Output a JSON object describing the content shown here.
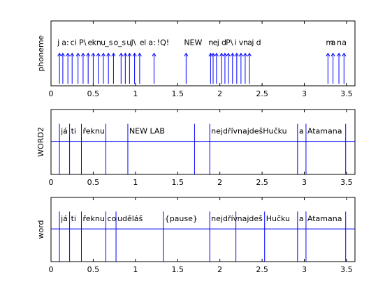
{
  "chart_data": [
    {
      "type": "event-plot",
      "ylabel": "phoneme",
      "xlim": [
        0,
        3.6
      ],
      "xticks": [
        "0",
        "0.5",
        "1",
        "1.5",
        "2",
        "2.5",
        "3",
        "3.5"
      ],
      "style": "stem",
      "marks": [
        {
          "x": 0.1,
          "label": "j"
        },
        {
          "x": 0.14,
          "label": "a:"
        },
        {
          "x": 0.2,
          "label": "c"
        },
        {
          "x": 0.25,
          "label": "i"
        },
        {
          "x": 0.32,
          "label": "P\\"
        },
        {
          "x": 0.38,
          "label": "e"
        },
        {
          "x": 0.44,
          "label": "k"
        },
        {
          "x": 0.5,
          "label": "n"
        },
        {
          "x": 0.56,
          "label": "u"
        },
        {
          "x": 0.62,
          "label": "_s"
        },
        {
          "x": 0.68,
          "label": "o"
        },
        {
          "x": 0.74,
          "label": "_s"
        },
        {
          "x": 0.83,
          "label": "u"
        },
        {
          "x": 0.88,
          "label": "J\\"
        },
        {
          "x": 0.93,
          "label": "e"
        },
        {
          "x": 0.99,
          "label": "l"
        },
        {
          "x": 1.05,
          "label": "a:"
        },
        {
          "x": 1.22,
          "label": "!Q!"
        },
        {
          "x": 1.6,
          "label": "NEW"
        },
        {
          "x": 1.89,
          "label": "n"
        },
        {
          "x": 1.92,
          "label": "e"
        },
        {
          "x": 1.96,
          "label": "j"
        },
        {
          "x": 2.02,
          "label": "d"
        },
        {
          "x": 2.06,
          "label": "P\\"
        },
        {
          "x": 2.1,
          "label": "i"
        },
        {
          "x": 2.15,
          "label": "v"
        },
        {
          "x": 2.2,
          "label": "n"
        },
        {
          "x": 2.25,
          "label": "a"
        },
        {
          "x": 2.3,
          "label": "j"
        },
        {
          "x": 2.35,
          "label": "d"
        },
        {
          "x": 3.28,
          "label": "m"
        },
        {
          "x": 3.34,
          "label": "a"
        },
        {
          "x": 3.41,
          "label": "n"
        },
        {
          "x": 3.47,
          "label": "a"
        }
      ]
    },
    {
      "type": "event-plot",
      "ylabel": "WORD2",
      "xlim": [
        0,
        3.6
      ],
      "xticks": [
        "0",
        "0.5",
        "1",
        "1.5",
        "2",
        "2.5",
        "3",
        "3.5"
      ],
      "style": "boundaries",
      "marks": [
        {
          "x": 0.1,
          "label": "já"
        },
        {
          "x": 0.22,
          "label": "ti"
        },
        {
          "x": 0.36,
          "label": "řeknu"
        },
        {
          "x": 0.65,
          "label": ""
        },
        {
          "x": 0.91,
          "label": "NEW LAB"
        },
        {
          "x": 1.7,
          "label": ""
        },
        {
          "x": 1.88,
          "label": "nejdřívnajdešHučku"
        },
        {
          "x": 2.92,
          "label": "a"
        },
        {
          "x": 3.02,
          "label": "Atamana"
        },
        {
          "x": 3.49,
          "label": ""
        }
      ]
    },
    {
      "type": "event-plot",
      "ylabel": "word",
      "xlim": [
        0,
        3.6
      ],
      "xticks": [
        "0",
        "0.5",
        "1",
        "1.5",
        "2",
        "2.5",
        "3",
        "3.5"
      ],
      "style": "boundaries",
      "marks": [
        {
          "x": 0.1,
          "label": "já"
        },
        {
          "x": 0.22,
          "label": "ti"
        },
        {
          "x": 0.36,
          "label": "řeknu"
        },
        {
          "x": 0.65,
          "label": "co"
        },
        {
          "x": 0.77,
          "label": "uděláš"
        },
        {
          "x": 1.33,
          "label": "{pause}"
        },
        {
          "x": 1.88,
          "label": "nejdřív"
        },
        {
          "x": 2.19,
          "label": "najdeš"
        },
        {
          "x": 2.53,
          "label": "Hučku"
        },
        {
          "x": 2.92,
          "label": "a"
        },
        {
          "x": 3.02,
          "label": "Atamana"
        },
        {
          "x": 3.49,
          "label": ""
        }
      ]
    }
  ]
}
